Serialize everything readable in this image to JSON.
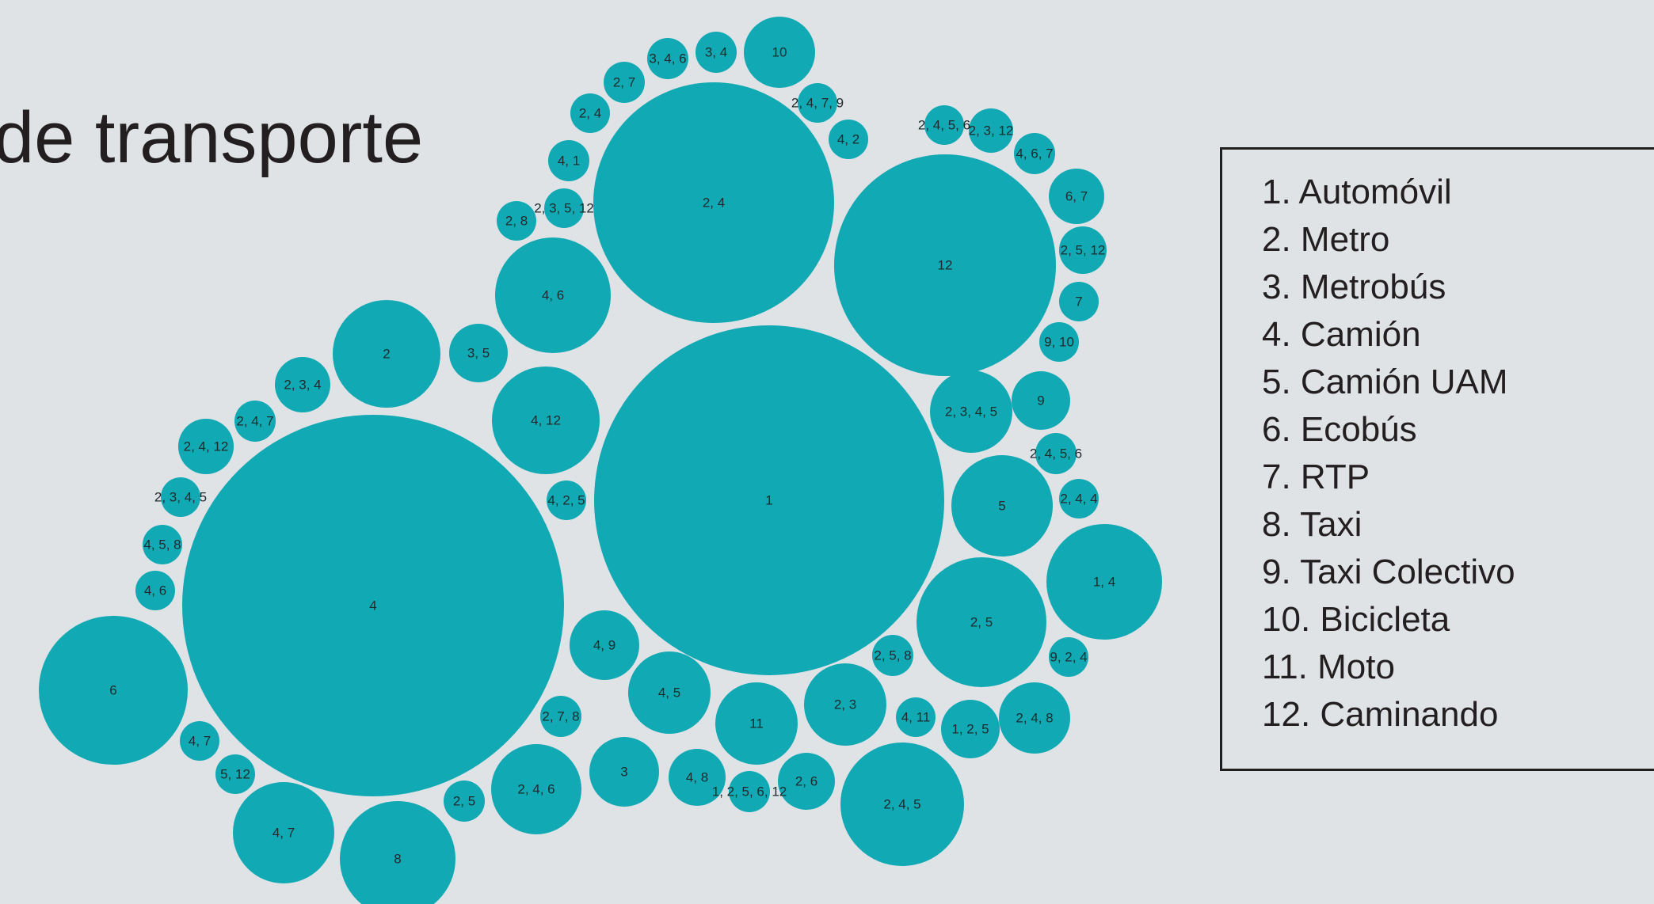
{
  "slide": {
    "title": "de transporte"
  },
  "legend": {
    "items": [
      "1. Automóvil",
      "2. Metro",
      "3. Metrobús",
      "4. Camión",
      "5. Camión UAM",
      "6. Ecobús",
      "7. RTP",
      "8. Taxi",
      "9. Taxi Colectivo",
      "10. Bicicleta",
      "11. Moto",
      "12. Caminando"
    ]
  },
  "diagram": {
    "bubble_color": "#11a9b3",
    "bubbles": [
      "1",
      "4",
      "2, 4",
      "12",
      "6",
      "8",
      "4, 7",
      "2, 4, 5",
      "1, 4",
      "2, 5",
      "5",
      "4, 6",
      "4, 12",
      "2",
      "2, 4, 6",
      "11",
      "2, 3",
      "4, 5",
      "3",
      "2, 3, 4, 5",
      "2, 4, 8",
      "10",
      "4, 9",
      "9",
      "1, 2, 5",
      "2, 6",
      "4, 8",
      "3, 5",
      "6, 7",
      "2, 3, 4",
      "2, 4, 12",
      "2, 5, 12",
      "2, 5",
      "1, 2, 5, 6, 12",
      "2, 3, 12",
      "2, 4, 5, 6",
      "2, 4, 7, 9",
      "4, 2",
      "4, 11",
      "2, 4, 7",
      "7",
      "9, 2, 4",
      "3, 4, 6",
      "3, 4",
      "2, 7",
      "2, 4",
      "4, 1",
      "2, 3, 5, 12",
      "2, 8",
      "9, 10",
      "2, 7, 8",
      "2, 5, 8",
      "4, 2, 5",
      "4, 6",
      "4, 5, 8",
      "2, 3, 4, 5",
      "5, 12",
      "4, 7",
      "4, 6, 7",
      "2, 4, 5, 6",
      "2, 4, 4"
    ]
  }
}
